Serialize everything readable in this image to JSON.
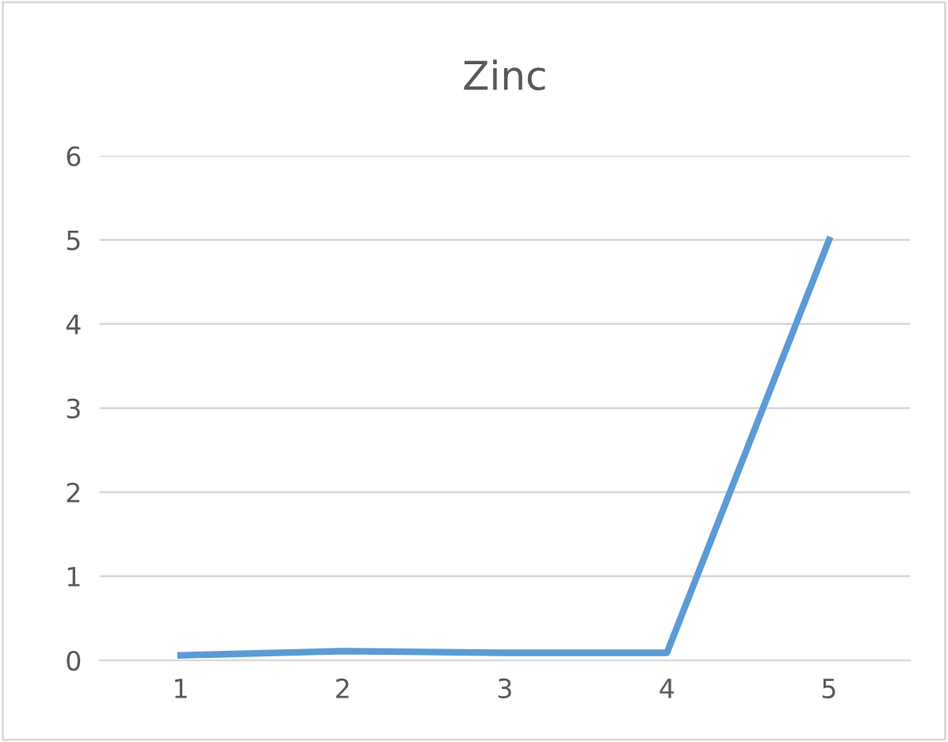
{
  "chart_data": {
    "type": "line",
    "title": "Zinc",
    "categories": [
      "1",
      "2",
      "3",
      "4",
      "5"
    ],
    "series": [
      {
        "color": "#5b9bd5",
        "values": [
          0.06,
          0.11,
          0.09,
          0.09,
          5.0
        ]
      }
    ],
    "ylim": [
      0,
      6
    ],
    "yticks": [
      0,
      1,
      2,
      3,
      4,
      5,
      6
    ],
    "grid": "y",
    "legend": false,
    "marker": "none",
    "line_style": "solid"
  }
}
